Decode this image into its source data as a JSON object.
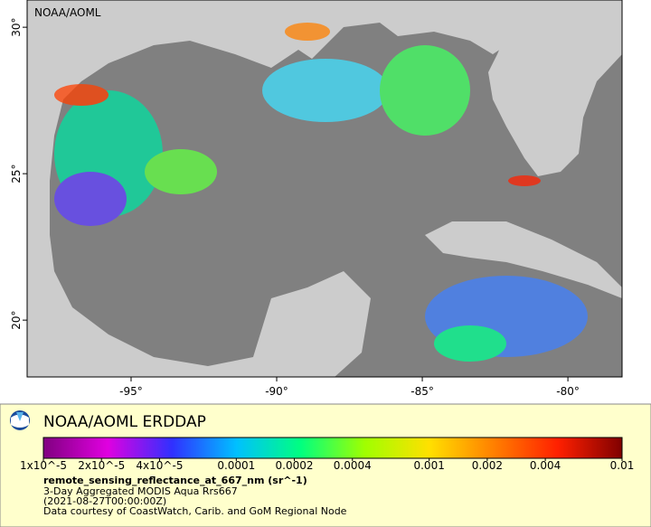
{
  "map": {
    "watermark": "NOAA/AOML",
    "lon_lim": [
      -98.57,
      -78.14
    ],
    "lat_lim": [
      18.06,
      30.93
    ],
    "lon_ticks": [
      {
        "value": -95,
        "label": "-95°"
      },
      {
        "value": -90,
        "label": "-90°"
      },
      {
        "value": -85,
        "label": "-85°"
      },
      {
        "value": -80,
        "label": "-80°"
      }
    ],
    "lat_ticks": [
      {
        "value": 20,
        "label": "20°"
      },
      {
        "value": 25,
        "label": "25°"
      },
      {
        "value": 30,
        "label": "30°"
      }
    ]
  },
  "legend": {
    "title": "NOAA/AOML ERDDAP",
    "colorbar": {
      "scale": "log",
      "lim": [
        1e-05,
        0.01
      ],
      "ticks": [
        {
          "value": 1e-05,
          "label": "1x10^-5"
        },
        {
          "value": 2e-05,
          "label": "2x10^-5"
        },
        {
          "value": 4e-05,
          "label": "4x10^-5"
        },
        0.0001,
        0.0002,
        0.0004,
        0.001,
        0.002,
        0.004,
        0.01
      ],
      "colors": [
        "#800080",
        "#e000e0",
        "#3030ff",
        "#00c0ff",
        "#00ff80",
        "#a0ff00",
        "#ffe000",
        "#ff8000",
        "#ff2000",
        "#800000"
      ]
    },
    "variable": "remote_sensing_reflectance_at_667_nm (sr^-1)",
    "dataset": "3-Day Aggregated MODIS Aqua Rrs667",
    "time": "(2021-08-27T00:00:00Z)",
    "credit": "Data courtesy of CoastWatch, Carib. and GoM Regional Node"
  }
}
